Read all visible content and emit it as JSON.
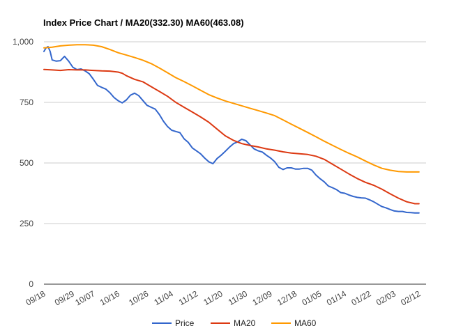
{
  "chart_data": {
    "type": "line",
    "title": "Index Price Chart / MA20(332.30) MA60(463.08)",
    "xlabel": "",
    "ylabel": "",
    "ylim": [
      0,
      1000
    ],
    "yticks": [
      0,
      250,
      500,
      750,
      1000
    ],
    "ytick_labels": [
      "0",
      "250",
      "500",
      "750",
      "1,000"
    ],
    "x_count": 100,
    "x_tick_labels": [
      {
        "i": 0,
        "label": "09/18"
      },
      {
        "i": 7,
        "label": "09/29"
      },
      {
        "i": 12,
        "label": "10/07"
      },
      {
        "i": 18,
        "label": "10/16"
      },
      {
        "i": 25,
        "label": "10/26"
      },
      {
        "i": 31,
        "label": "11/04"
      },
      {
        "i": 37,
        "label": "11/12"
      },
      {
        "i": 43,
        "label": "11/20"
      },
      {
        "i": 49,
        "label": "11/30"
      },
      {
        "i": 55,
        "label": "12/09"
      },
      {
        "i": 61,
        "label": "12/18"
      },
      {
        "i": 67,
        "label": "01/05"
      },
      {
        "i": 73,
        "label": "01/14"
      },
      {
        "i": 79,
        "label": "01/22"
      },
      {
        "i": 85,
        "label": "02/03"
      },
      {
        "i": 91,
        "label": "02/12"
      }
    ],
    "grid": true,
    "legend_position": "bottom",
    "series": [
      {
        "name": "Price",
        "color": "#3366cc",
        "points": [
          [
            0,
            960
          ],
          [
            0.5,
            975
          ],
          [
            1,
            980
          ],
          [
            1.5,
            960
          ],
          [
            2,
            925
          ],
          [
            3,
            920
          ],
          [
            4,
            922
          ],
          [
            5,
            940
          ],
          [
            6,
            920
          ],
          [
            7,
            895
          ],
          [
            8,
            885
          ],
          [
            9,
            888
          ],
          [
            10,
            880
          ],
          [
            11,
            868
          ],
          [
            12,
            845
          ],
          [
            13,
            820
          ],
          [
            14,
            812
          ],
          [
            15,
            805
          ],
          [
            16,
            790
          ],
          [
            17,
            770
          ],
          [
            18,
            757
          ],
          [
            19,
            748
          ],
          [
            20,
            760
          ],
          [
            21,
            780
          ],
          [
            22,
            788
          ],
          [
            23,
            778
          ],
          [
            24,
            758
          ],
          [
            25,
            738
          ],
          [
            26,
            730
          ],
          [
            27,
            722
          ],
          [
            28,
            700
          ],
          [
            29,
            672
          ],
          [
            30,
            650
          ],
          [
            31,
            635
          ],
          [
            32,
            630
          ],
          [
            33,
            625
          ],
          [
            34,
            600
          ],
          [
            35,
            585
          ],
          [
            36,
            562
          ],
          [
            37,
            550
          ],
          [
            38,
            538
          ],
          [
            39,
            520
          ],
          [
            40,
            505
          ],
          [
            41,
            497
          ],
          [
            42,
            518
          ],
          [
            43,
            532
          ],
          [
            44,
            548
          ],
          [
            45,
            565
          ],
          [
            46,
            580
          ],
          [
            47,
            587
          ],
          [
            48,
            598
          ],
          [
            49,
            592
          ],
          [
            50,
            575
          ],
          [
            51,
            558
          ],
          [
            52,
            550
          ],
          [
            53,
            545
          ],
          [
            54,
            532
          ],
          [
            55,
            520
          ],
          [
            56,
            505
          ],
          [
            57,
            482
          ],
          [
            58,
            473
          ],
          [
            59,
            480
          ],
          [
            60,
            480
          ],
          [
            61,
            475
          ],
          [
            62,
            475
          ],
          [
            63,
            478
          ],
          [
            64,
            478
          ],
          [
            65,
            470
          ],
          [
            66,
            450
          ],
          [
            67,
            435
          ],
          [
            68,
            422
          ],
          [
            69,
            405
          ],
          [
            70,
            398
          ],
          [
            71,
            390
          ],
          [
            72,
            378
          ],
          [
            73,
            375
          ],
          [
            74,
            368
          ],
          [
            75,
            362
          ],
          [
            76,
            358
          ],
          [
            77,
            356
          ],
          [
            78,
            355
          ],
          [
            79,
            348
          ],
          [
            80,
            340
          ],
          [
            81,
            330
          ],
          [
            82,
            320
          ],
          [
            83,
            315
          ],
          [
            84,
            308
          ],
          [
            85,
            302
          ],
          [
            86,
            300
          ],
          [
            87,
            300
          ],
          [
            88,
            296
          ],
          [
            89,
            295
          ],
          [
            90,
            294
          ],
          [
            91,
            294
          ]
        ]
      },
      {
        "name": "MA20",
        "color": "#dc3912",
        "points": [
          [
            0,
            886
          ],
          [
            2,
            884
          ],
          [
            4,
            882
          ],
          [
            6,
            885
          ],
          [
            8,
            884
          ],
          [
            10,
            884
          ],
          [
            12,
            882
          ],
          [
            14,
            880
          ],
          [
            16,
            879
          ],
          [
            18,
            875
          ],
          [
            19,
            870
          ],
          [
            20,
            860
          ],
          [
            22,
            845
          ],
          [
            24,
            835
          ],
          [
            26,
            815
          ],
          [
            28,
            795
          ],
          [
            30,
            775
          ],
          [
            32,
            750
          ],
          [
            34,
            730
          ],
          [
            36,
            710
          ],
          [
            38,
            690
          ],
          [
            40,
            668
          ],
          [
            42,
            640
          ],
          [
            44,
            612
          ],
          [
            46,
            593
          ],
          [
            48,
            580
          ],
          [
            50,
            572
          ],
          [
            52,
            566
          ],
          [
            54,
            558
          ],
          [
            56,
            553
          ],
          [
            58,
            546
          ],
          [
            60,
            541
          ],
          [
            62,
            538
          ],
          [
            64,
            535
          ],
          [
            66,
            528
          ],
          [
            68,
            515
          ],
          [
            70,
            495
          ],
          [
            72,
            475
          ],
          [
            74,
            455
          ],
          [
            76,
            436
          ],
          [
            78,
            420
          ],
          [
            80,
            408
          ],
          [
            82,
            392
          ],
          [
            84,
            373
          ],
          [
            86,
            355
          ],
          [
            88,
            340
          ],
          [
            90,
            332
          ],
          [
            91,
            332
          ]
        ]
      },
      {
        "name": "MA60",
        "color": "#ff9900",
        "points": [
          [
            0,
            975
          ],
          [
            2,
            978
          ],
          [
            4,
            983
          ],
          [
            6,
            986
          ],
          [
            8,
            988
          ],
          [
            10,
            988
          ],
          [
            12,
            986
          ],
          [
            14,
            980
          ],
          [
            16,
            968
          ],
          [
            18,
            955
          ],
          [
            20,
            945
          ],
          [
            22,
            935
          ],
          [
            24,
            924
          ],
          [
            26,
            910
          ],
          [
            28,
            892
          ],
          [
            30,
            872
          ],
          [
            32,
            852
          ],
          [
            34,
            836
          ],
          [
            36,
            818
          ],
          [
            38,
            800
          ],
          [
            40,
            782
          ],
          [
            42,
            768
          ],
          [
            44,
            756
          ],
          [
            46,
            746
          ],
          [
            48,
            736
          ],
          [
            50,
            726
          ],
          [
            52,
            716
          ],
          [
            54,
            706
          ],
          [
            56,
            695
          ],
          [
            58,
            678
          ],
          [
            60,
            660
          ],
          [
            62,
            643
          ],
          [
            64,
            626
          ],
          [
            66,
            608
          ],
          [
            68,
            590
          ],
          [
            70,
            573
          ],
          [
            72,
            556
          ],
          [
            74,
            540
          ],
          [
            76,
            525
          ],
          [
            78,
            508
          ],
          [
            80,
            492
          ],
          [
            82,
            478
          ],
          [
            84,
            470
          ],
          [
            86,
            465
          ],
          [
            88,
            463
          ],
          [
            90,
            463
          ],
          [
            91,
            463
          ]
        ]
      }
    ]
  }
}
